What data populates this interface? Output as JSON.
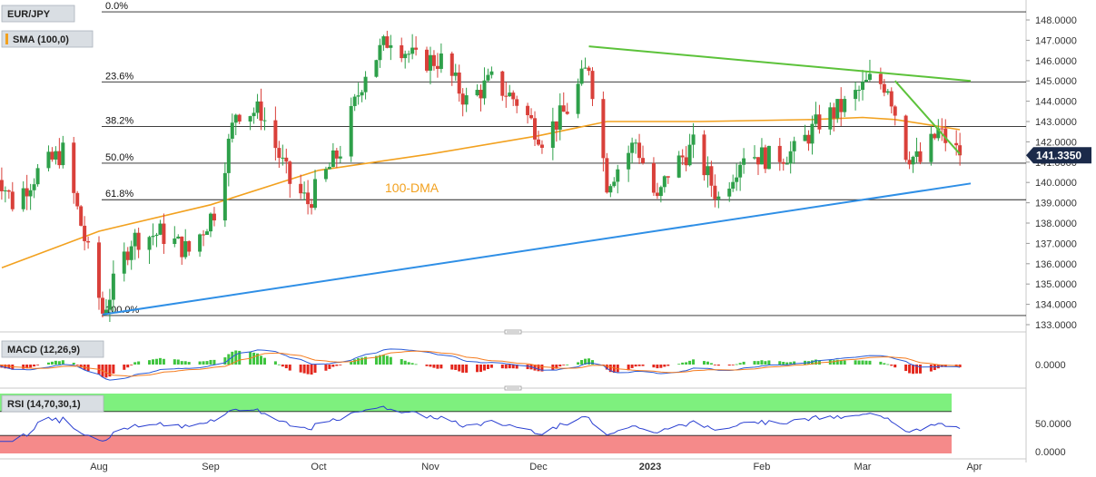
{
  "symbol": "EUR/JPY",
  "sma_label": "SMA (100,0)",
  "dma_label": "100-DMA",
  "price_tag": "141.3350",
  "colors": {
    "up": "#2ea04a",
    "down": "#d9403a",
    "sma": "#f2a11f",
    "support": "#2f8fe6",
    "resistance": "#5cc23a",
    "tag_bg": "#1b2a4a",
    "macd_line": "#2a5bd7",
    "signal_line": "#f57c1f",
    "hist_pos": "#3ec43e",
    "hist_neg": "#e3261c",
    "rsi_line": "#2a3fd1",
    "rsi_over": "#7ef07e",
    "rsi_under": "#f58a8a"
  },
  "fib_levels": [
    {
      "label": "0.0%",
      "value": 148.4
    },
    {
      "label": "23.6%",
      "value": 144.95
    },
    {
      "label": "38.2%",
      "value": 142.75
    },
    {
      "label": "50.0%",
      "value": 140.95
    },
    {
      "label": "61.8%",
      "value": 139.15
    },
    {
      "label": "100.0%",
      "value": 133.45
    }
  ],
  "price_ticks": [
    "148.0000",
    "147.0000",
    "146.0000",
    "145.0000",
    "144.0000",
    "143.0000",
    "142.0000",
    "141.0000",
    "140.0000",
    "139.0000",
    "138.0000",
    "137.0000",
    "136.0000",
    "135.0000",
    "134.0000",
    "133.0000"
  ],
  "macd": {
    "label": "MACD (12,26,9)",
    "tick": "0.0000"
  },
  "rsi": {
    "label": "RSI (14,70,30,1)",
    "ticks": [
      "50.0000",
      "0.0000"
    ]
  },
  "months": [
    "Aug",
    "Sep",
    "Oct",
    "Nov",
    "Dec",
    "2023",
    "Feb",
    "Mar",
    "Apr"
  ],
  "chart_data": {
    "type": "candlestick",
    "series_name": "EUR/JPY",
    "y_range": [
      132.8,
      148.6
    ],
    "x_start": "2022-07-01",
    "x_end": "2023-03-31",
    "last_price": 141.335,
    "anchors": [
      [
        "2022-07-01",
        141.5
      ],
      [
        "2022-07-08",
        139.0
      ],
      [
        "2022-07-15",
        140.5
      ],
      [
        "2022-07-22",
        141.5
      ],
      [
        "2022-07-29",
        136.5
      ],
      [
        "2022-08-02",
        133.6
      ],
      [
        "2022-08-10",
        137.2
      ],
      [
        "2022-08-18",
        137.5
      ],
      [
        "2022-08-26",
        136.6
      ],
      [
        "2022-09-02",
        138.6
      ],
      [
        "2022-09-08",
        143.5
      ],
      [
        "2022-09-15",
        143.5
      ],
      [
        "2022-09-23",
        140.0
      ],
      [
        "2022-09-28",
        139.0
      ],
      [
        "2022-10-07",
        141.6
      ],
      [
        "2022-10-14",
        145.5
      ],
      [
        "2022-10-21",
        147.2
      ],
      [
        "2022-10-28",
        146.0
      ],
      [
        "2022-11-04",
        146.0
      ],
      [
        "2022-11-11",
        144.0
      ],
      [
        "2022-11-18",
        145.0
      ],
      [
        "2022-11-25",
        144.0
      ],
      [
        "2022-12-02",
        142.2
      ],
      [
        "2022-12-09",
        143.6
      ],
      [
        "2022-12-15",
        145.8
      ],
      [
        "2022-12-20",
        140.0
      ],
      [
        "2022-12-28",
        142.0
      ],
      [
        "2023-01-03",
        139.0
      ],
      [
        "2023-01-06",
        140.5
      ],
      [
        "2023-01-13",
        141.8
      ],
      [
        "2023-01-20",
        139.2
      ],
      [
        "2023-01-27",
        141.5
      ],
      [
        "2023-02-03",
        141.2
      ],
      [
        "2023-02-10",
        141.5
      ],
      [
        "2023-02-17",
        143.0
      ],
      [
        "2023-02-24",
        143.8
      ],
      [
        "2023-03-03",
        145.0
      ],
      [
        "2023-03-08",
        144.8
      ],
      [
        "2023-03-13",
        141.5
      ],
      [
        "2023-03-17",
        141.0
      ],
      [
        "2023-03-22",
        142.5
      ],
      [
        "2023-03-28",
        141.335
      ]
    ],
    "sma_100": [
      [
        "2022-07-01",
        135.8
      ],
      [
        "2022-08-01",
        137.6
      ],
      [
        "2022-09-01",
        138.9
      ],
      [
        "2022-10-01",
        140.6
      ],
      [
        "2022-11-01",
        141.4
      ],
      [
        "2022-12-01",
        142.3
      ],
      [
        "2022-12-20",
        143.0
      ],
      [
        "2023-01-15",
        143.0
      ],
      [
        "2023-02-15",
        143.1
      ],
      [
        "2023-03-01",
        143.2
      ],
      [
        "2023-03-10",
        143.1
      ],
      [
        "2023-03-28",
        142.6
      ]
    ],
    "trendlines": [
      {
        "name": "support",
        "from": [
          "2022-08-02",
          133.5
        ],
        "to": [
          "2023-03-31",
          139.95
        ]
      },
      {
        "name": "resistance-long",
        "from": [
          "2022-12-15",
          146.7
        ],
        "to": [
          "2023-03-31",
          145.0
        ]
      },
      {
        "name": "resistance-short",
        "from": [
          "2023-03-10",
          145.0
        ],
        "to": [
          "2023-03-28",
          141.4
        ]
      }
    ]
  }
}
